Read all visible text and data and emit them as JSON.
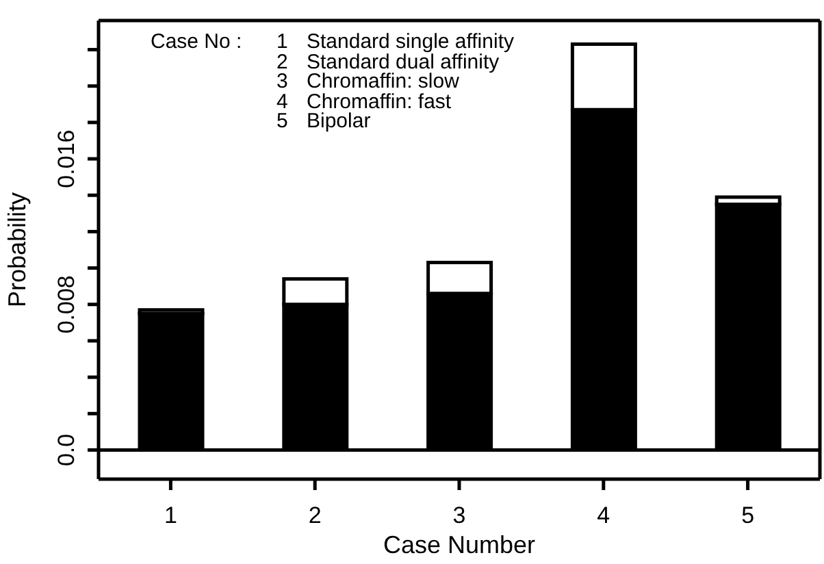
{
  "chart_data": {
    "type": "bar",
    "xlabel": "Case Number",
    "ylabel": "Probability",
    "categories": [
      "1",
      "2",
      "3",
      "4",
      "5"
    ],
    "stacked": true,
    "series": [
      {
        "color": "#000000",
        "values": [
          0.0075,
          0.008,
          0.0086,
          0.0187,
          0.0135
        ]
      },
      {
        "color": "#ffffff",
        "values": [
          0.0002,
          0.0014,
          0.0017,
          0.0036,
          0.0004
        ]
      }
    ],
    "ylim": [
      -0.0016,
      0.0236
    ],
    "yticks": [
      {
        "value": 0,
        "label": "0.0"
      },
      {
        "value": 0.002,
        "label": null
      },
      {
        "value": 0.004,
        "label": null
      },
      {
        "value": 0.006,
        "label": null
      },
      {
        "value": 0.008,
        "label": "0.008"
      },
      {
        "value": 0.01,
        "label": null
      },
      {
        "value": 0.012,
        "label": null
      },
      {
        "value": 0.014,
        "label": null
      },
      {
        "value": 0.016,
        "label": "0.016"
      },
      {
        "value": 0.018,
        "label": null
      },
      {
        "value": 0.02,
        "label": null
      },
      {
        "value": 0.022,
        "label": null
      }
    ],
    "ref_lines": [
      {
        "axis": "y",
        "value": 0,
        "color": "#000000"
      }
    ],
    "annotations": [
      "Case No :",
      "1 Standard single affinity",
      "2 Standard dual affinity",
      "3 Chromaffin: slow",
      "4 Chromaffin: fast",
      "5 Bipolar"
    ],
    "legend": false,
    "grid": false
  }
}
